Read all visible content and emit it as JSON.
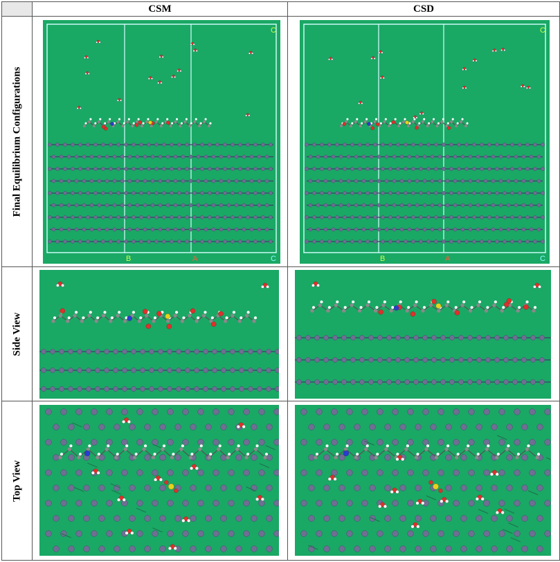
{
  "table": {
    "column_headers": [
      "CSM",
      "CSD"
    ],
    "row_labels": [
      "Final Equilibrium Configurations",
      "Side View",
      "Top View"
    ]
  },
  "colors": {
    "background_green": "#1aa865",
    "atom_slate": "#6e6f93",
    "oxygen": "#e0302a",
    "hydrogen": "#ffffff",
    "nitrogen": "#2a3bd1",
    "sulfur": "#e6d21c",
    "box_line": "#d8ffff"
  },
  "panels": {
    "final_csm": {
      "box_labels": [
        "B",
        "A",
        "C",
        "C"
      ]
    },
    "final_csd": {
      "box_labels": [
        "B",
        "A",
        "C",
        "C"
      ]
    }
  }
}
